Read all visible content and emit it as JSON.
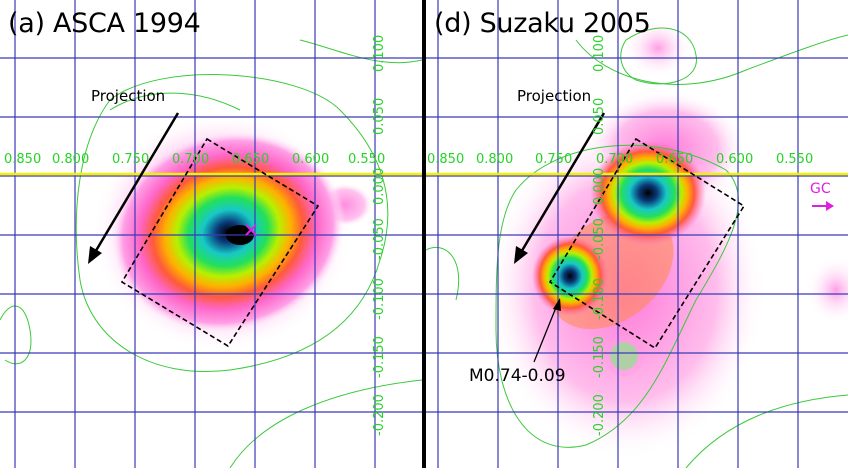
{
  "panels": [
    {
      "title": "(a) ASCA 1994",
      "x_ticks": [
        "0.850",
        "0.800",
        "0.750",
        "0.700",
        "0.650",
        "0.600",
        "0.550"
      ],
      "y_ticks": [
        "0.100",
        "0.050",
        "0.000",
        "-0.050",
        "-0.100",
        "-0.150",
        "-0.200"
      ],
      "projection_label": "Projection"
    },
    {
      "title": "(d) Suzaku 2005",
      "x_ticks": [
        "0.850",
        "0.800",
        "0.750",
        "0.700",
        "0.650",
        "0.600",
        "0.550"
      ],
      "y_ticks": [
        "0.100",
        "0.050",
        "0.000",
        "-0.050",
        "-0.100",
        "-0.150",
        "-0.200"
      ],
      "projection_label": "Projection",
      "gc_label": "GC",
      "source_label": "M0.74-0.09"
    }
  ],
  "colors": {
    "grid": "#3a3ab8",
    "plane_line": "#f2f200",
    "contour": "#3cc83c",
    "tick_text": "#27d327",
    "gc_marker": "#e020e0"
  }
}
